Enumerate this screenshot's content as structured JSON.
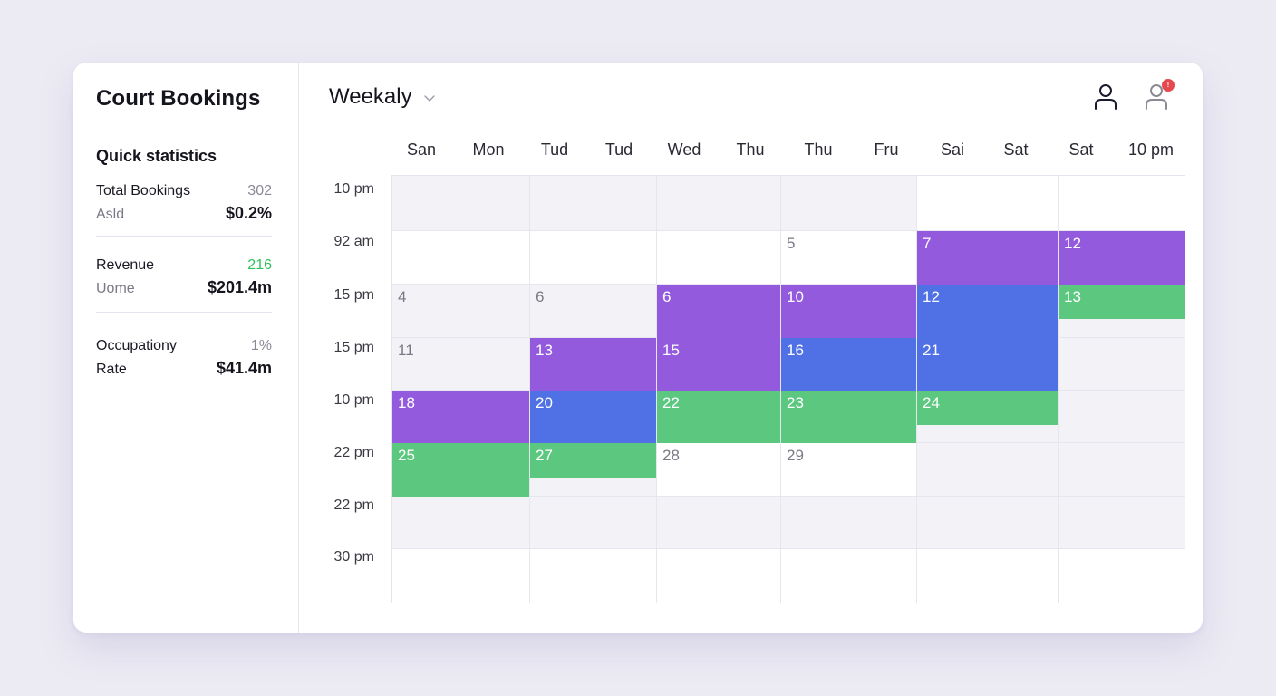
{
  "app": {
    "title": "Court Bookings"
  },
  "sidebar": {
    "section_title": "Quick statistics",
    "stats": [
      {
        "label": "Total Bookings",
        "small_value": "302",
        "sublabel": "Asld",
        "big_value": "$0.2%",
        "small_color": "gray"
      },
      {
        "label": "Revenue",
        "small_value": "216",
        "sublabel": "Uome",
        "big_value": "$201.4m",
        "small_color": "green"
      },
      {
        "label": "Occupationy",
        "small_value": "1%",
        "sublabel": "Rate",
        "big_value": "$41.4m",
        "small_color": "gray"
      }
    ]
  },
  "header": {
    "view_label": "Weekaly",
    "view_icon": "chevron-down-icon",
    "icons": [
      {
        "name": "user-icon",
        "badge": null
      },
      {
        "name": "user-notification-icon",
        "badge": "!"
      }
    ]
  },
  "calendar": {
    "day_headers": [
      "San",
      "Mon",
      "Tud",
      "Tud",
      "Wed",
      "Thu",
      "Thu",
      "Fru",
      "Sai",
      "Sat",
      "Sat",
      "10 pm"
    ],
    "time_labels": [
      "10 pm",
      "92 am",
      "15 pm",
      "15 pm",
      "10 pm",
      "22 pm",
      "22 pm",
      "30 pm"
    ],
    "colors": {
      "purple": "#935add",
      "blue": "#5071e6",
      "green": "#5cc77f",
      "gray": "#f3f3f7",
      "white": "#ffffff"
    },
    "rows": [
      [
        {
          "bg": "gray"
        },
        {
          "bg": "gray"
        },
        {
          "bg": "gray"
        },
        {
          "bg": "gray"
        },
        {
          "bg": "white"
        },
        {
          "bg": "white"
        }
      ],
      [
        {
          "bg": "white"
        },
        {
          "bg": "white"
        },
        {
          "bg": "white"
        },
        {
          "bg": "white",
          "label": "5"
        },
        {
          "bg": "white",
          "event": "purple",
          "label": "7"
        },
        {
          "bg": "white",
          "event": "purple",
          "label": "12"
        }
      ],
      [
        {
          "bg": "gray",
          "label": "4"
        },
        {
          "bg": "gray",
          "label": "6"
        },
        {
          "bg": "gray",
          "event": "purple",
          "label": "6"
        },
        {
          "bg": "gray",
          "event": "purple",
          "label": "10"
        },
        {
          "bg": "gray",
          "event": "blue",
          "label": "12"
        },
        {
          "bg": "gray",
          "event": "green",
          "label": "13",
          "partial": true
        }
      ],
      [
        {
          "bg": "gray",
          "label": "11"
        },
        {
          "bg": "gray",
          "event": "purple",
          "label": "13"
        },
        {
          "bg": "gray",
          "event": "purple",
          "label": "15"
        },
        {
          "bg": "gray",
          "event": "blue",
          "label": "16"
        },
        {
          "bg": "gray",
          "event": "blue",
          "label": "21"
        },
        {
          "bg": "gray"
        }
      ],
      [
        {
          "bg": "gray",
          "event": "purple",
          "label": "18"
        },
        {
          "bg": "gray",
          "event": "blue",
          "label": "20"
        },
        {
          "bg": "gray",
          "event": "green",
          "label": "22"
        },
        {
          "bg": "gray",
          "event": "green",
          "label": "23"
        },
        {
          "bg": "gray",
          "event": "green",
          "label": "24",
          "partial": true
        },
        {
          "bg": "gray"
        }
      ],
      [
        {
          "bg": "gray",
          "event": "green",
          "label": "25"
        },
        {
          "bg": "gray",
          "event": "green",
          "label": "27",
          "partial": true
        },
        {
          "bg": "white",
          "label": "28"
        },
        {
          "bg": "white",
          "label": "29"
        },
        {
          "bg": "gray"
        },
        {
          "bg": "gray"
        }
      ],
      [
        {
          "bg": "gray"
        },
        {
          "bg": "gray"
        },
        {
          "bg": "gray"
        },
        {
          "bg": "gray"
        },
        {
          "bg": "gray"
        },
        {
          "bg": "gray"
        }
      ],
      [
        {
          "bg": "white"
        },
        {
          "bg": "white"
        },
        {
          "bg": "white"
        },
        {
          "bg": "white"
        },
        {
          "bg": "white"
        },
        {
          "bg": "white"
        }
      ]
    ]
  }
}
